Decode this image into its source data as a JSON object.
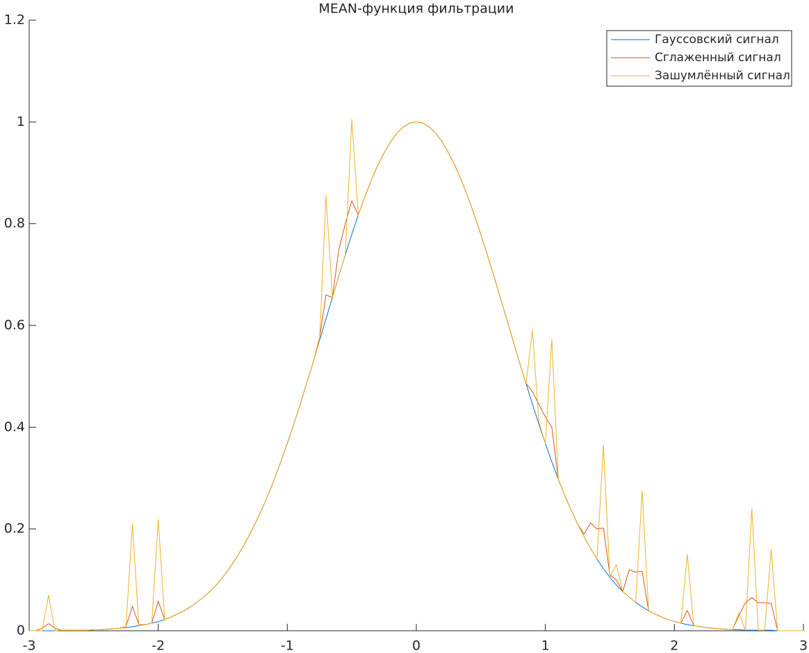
{
  "chart_data": {
    "type": "line",
    "title": "MEAN-функция фильтрации",
    "x": [
      -3,
      -2.95,
      -2.9,
      -2.85,
      -2.8,
      -2.75,
      -2.7,
      -2.65,
      -2.6,
      -2.55,
      -2.5,
      -2.45,
      -2.4,
      -2.35,
      -2.3,
      -2.25,
      -2.2,
      -2.15,
      -2.1,
      -2.05,
      -2,
      -1.95,
      -1.9,
      -1.85,
      -1.8,
      -1.75,
      -1.7,
      -1.65,
      -1.6,
      -1.55,
      -1.5,
      -1.45,
      -1.4,
      -1.35,
      -1.3,
      -1.25,
      -1.2,
      -1.15,
      -1.1,
      -1.05,
      -1,
      -0.95,
      -0.9,
      -0.85,
      -0.8,
      -0.75,
      -0.7,
      -0.65,
      -0.6,
      -0.55,
      -0.5,
      -0.45,
      -0.4,
      -0.35,
      -0.3,
      -0.25,
      -0.2,
      -0.15,
      -0.1,
      -0.05,
      0,
      0.05,
      0.1,
      0.15,
      0.2,
      0.25,
      0.3,
      0.35,
      0.4,
      0.45,
      0.5,
      0.55,
      0.6,
      0.65,
      0.7,
      0.75,
      0.8,
      0.85,
      0.9,
      0.95,
      1,
      1.05,
      1.1,
      1.15,
      1.2,
      1.25,
      1.3,
      1.35,
      1.4,
      1.45,
      1.5,
      1.55,
      1.6,
      1.65,
      1.7,
      1.75,
      1.8,
      1.85,
      1.9,
      1.95,
      2,
      2.05,
      2.1,
      2.15,
      2.2,
      2.25,
      2.3,
      2.35,
      2.4,
      2.45,
      2.5,
      2.55,
      2.6,
      2.65,
      2.7,
      2.75,
      2.8,
      2.85,
      2.9,
      2.95,
      3
    ],
    "series": [
      {
        "name": "Гауссовский сигнал",
        "color": "#0072bd",
        "values": [
          0,
          0,
          0,
          0,
          0,
          0.001,
          0.001,
          0.001,
          0.001,
          0.001,
          0.002,
          0.002,
          0.003,
          0.004,
          0.005,
          0.006,
          0.008,
          0.01,
          0.012,
          0.015,
          0.018,
          0.022,
          0.027,
          0.033,
          0.039,
          0.047,
          0.056,
          0.066,
          0.077,
          0.09,
          0.105,
          0.122,
          0.141,
          0.162,
          0.185,
          0.21,
          0.237,
          0.266,
          0.298,
          0.332,
          0.368,
          0.406,
          0.445,
          0.486,
          0.527,
          0.57,
          0.613,
          0.655,
          0.698,
          0.739,
          0.779,
          0.817,
          0.852,
          0.885,
          0.914,
          0.939,
          0.961,
          0.978,
          0.99,
          0.998,
          1,
          0.998,
          0.99,
          0.978,
          0.961,
          0.939,
          0.914,
          0.885,
          0.852,
          0.817,
          0.779,
          0.739,
          0.698,
          0.655,
          0.613,
          0.57,
          0.527,
          0.486,
          0.445,
          0.406,
          0.368,
          0.332,
          0.298,
          0.266,
          0.237,
          0.21,
          0.185,
          0.162,
          0.141,
          0.122,
          0.105,
          0.09,
          0.077,
          0.066,
          0.056,
          0.047,
          0.039,
          0.033,
          0.027,
          0.022,
          0.018,
          0.015,
          0.012,
          0.01,
          0.008,
          0.006,
          0.005,
          0.004,
          0.003,
          0.002,
          0.002,
          0.001,
          0.001,
          0.001,
          0.001,
          0.001,
          0,
          0,
          0,
          0,
          0
        ]
      },
      {
        "name": "Сглаженный сигнал",
        "color": "#d95319",
        "values": [
          0,
          0,
          0.005,
          0.014,
          0.005,
          0.001,
          0.001,
          0.001,
          0.001,
          0.001,
          0.002,
          0.002,
          0.003,
          0.004,
          0.005,
          0.008,
          0.048,
          0.012,
          0.012,
          0.015,
          0.058,
          0.022,
          0.027,
          0.033,
          0.039,
          0.047,
          0.056,
          0.066,
          0.077,
          0.09,
          0.105,
          0.122,
          0.141,
          0.162,
          0.185,
          0.21,
          0.237,
          0.266,
          0.298,
          0.332,
          0.368,
          0.406,
          0.445,
          0.486,
          0.527,
          0.575,
          0.66,
          0.655,
          0.75,
          0.8,
          0.845,
          0.817,
          0.852,
          0.885,
          0.914,
          0.939,
          0.961,
          0.978,
          0.99,
          0.998,
          1,
          0.998,
          0.99,
          0.978,
          0.961,
          0.939,
          0.914,
          0.885,
          0.852,
          0.817,
          0.779,
          0.739,
          0.698,
          0.655,
          0.613,
          0.57,
          0.527,
          0.486,
          0.47,
          0.445,
          0.42,
          0.4,
          0.298,
          0.266,
          0.237,
          0.21,
          0.19,
          0.212,
          0.2,
          0.202,
          0.11,
          0.1,
          0.077,
          0.12,
          0.115,
          0.117,
          0.039,
          0.033,
          0.027,
          0.022,
          0.018,
          0.015,
          0.04,
          0.01,
          0.008,
          0.006,
          0.005,
          0.004,
          0.003,
          0.002,
          0.03,
          0.055,
          0.065,
          0.055,
          0.055,
          0.054,
          0,
          0,
          0,
          0,
          0
        ]
      },
      {
        "name": "Зашумлённый сигнал",
        "color": "#edb120",
        "values": [
          0,
          0,
          0,
          0.07,
          0,
          0.001,
          0.001,
          0.001,
          0.001,
          0.001,
          0.002,
          0.002,
          0.003,
          0.004,
          0.005,
          0.006,
          0.21,
          0.01,
          0.012,
          0.015,
          0.218,
          0.022,
          0.027,
          0.033,
          0.039,
          0.047,
          0.056,
          0.066,
          0.077,
          0.09,
          0.105,
          0.122,
          0.141,
          0.162,
          0.185,
          0.21,
          0.237,
          0.266,
          0.298,
          0.332,
          0.368,
          0.406,
          0.445,
          0.486,
          0.527,
          0.57,
          0.855,
          0.655,
          0.698,
          0.739,
          1.005,
          0.817,
          0.852,
          0.885,
          0.914,
          0.939,
          0.961,
          0.978,
          0.99,
          0.998,
          1,
          0.998,
          0.99,
          0.978,
          0.961,
          0.939,
          0.914,
          0.885,
          0.852,
          0.817,
          0.779,
          0.739,
          0.698,
          0.655,
          0.613,
          0.57,
          0.527,
          0.486,
          0.59,
          0.41,
          0.368,
          0.573,
          0.298,
          0.266,
          0.237,
          0.21,
          0.185,
          0.162,
          0.141,
          0.365,
          0.105,
          0.13,
          0.077,
          0.066,
          0.056,
          0.275,
          0.039,
          0.033,
          0.027,
          0.022,
          0.018,
          0.015,
          0.15,
          0.01,
          0.008,
          0.006,
          0.005,
          0.004,
          0.003,
          0.002,
          0.035,
          0.001,
          0.24,
          0.001,
          0.001,
          0.16,
          0,
          0,
          0,
          0,
          0
        ]
      }
    ],
    "xlim": [
      -3,
      3
    ],
    "xticks": [
      -3,
      -2,
      -1,
      0,
      1,
      2,
      3
    ],
    "ylim": [
      0,
      1.2
    ],
    "yticks": [
      0,
      0.2,
      0.4,
      0.6,
      0.8,
      1,
      1.2
    ],
    "grid": false,
    "legend": "northeast"
  }
}
